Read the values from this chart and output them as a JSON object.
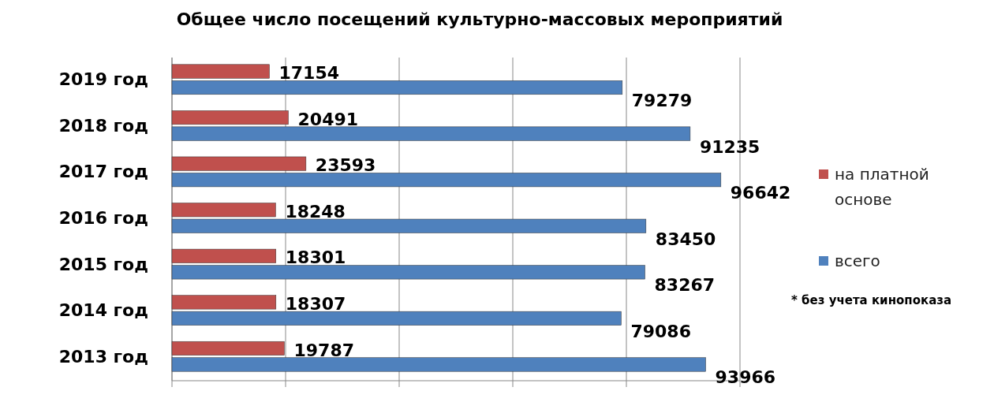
{
  "chart_data": {
    "type": "bar",
    "orientation": "horizontal",
    "title": "Общее число посещений культурно-массовых мероприятий",
    "categories": [
      "2019 год",
      "2018 год",
      "2017 год",
      "2016 год",
      "2015 год",
      "2014 год",
      "2013 год"
    ],
    "series": [
      {
        "name": "на платной основе",
        "color": "#c0504d",
        "values": [
          17154,
          20491,
          23593,
          18248,
          18301,
          18307,
          19787
        ]
      },
      {
        "name": "всего",
        "color": "#4f81bd",
        "values": [
          79279,
          91235,
          96642,
          83450,
          83267,
          79086,
          93966
        ]
      }
    ],
    "xlim": [
      0,
      100000
    ],
    "xticks": [
      {
        "value": 0,
        "label": null
      },
      {
        "value": 20000,
        "label": null
      },
      {
        "value": 40000,
        "label": null
      },
      {
        "value": 60000,
        "label": null
      },
      {
        "value": 80000,
        "label": null
      },
      {
        "value": 100000,
        "label": null
      }
    ],
    "grid": "x",
    "legend": "right",
    "data_labels": true,
    "annotations": [
      "* без учета кинопоказа"
    ]
  }
}
